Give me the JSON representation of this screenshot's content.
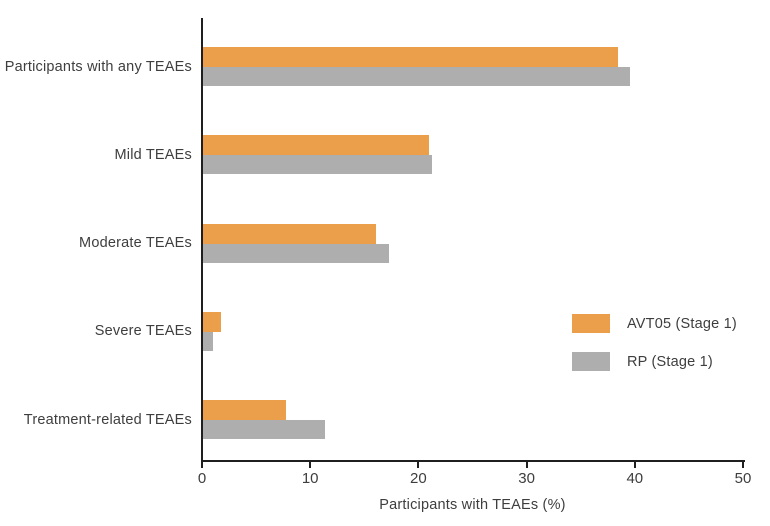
{
  "chart_data": {
    "type": "bar",
    "orientation": "horizontal",
    "title": "",
    "categories": [
      "Participants with any TEAEs",
      "Mild TEAEs",
      "Moderate TEAEs",
      "Severe TEAEs",
      "Treatment-related TEAEs"
    ],
    "series": [
      {
        "name": "AVT05 (Stage 1)",
        "color": "#EC9F4B",
        "values": [
          38.4,
          20.9,
          16.0,
          1.7,
          7.7
        ]
      },
      {
        "name": "RP (Stage 1)",
        "color": "#AEAEAE",
        "values": [
          39.5,
          21.2,
          17.2,
          0.9,
          11.3
        ]
      }
    ],
    "xlabel": "Participants with TEAEs (%)",
    "ylabel": "",
    "xlim": [
      0,
      50
    ],
    "xticks": [
      0,
      10,
      20,
      30,
      40,
      50
    ],
    "grid": false,
    "legend_position": "right-middle",
    "axis_color": "#1F1F1F",
    "text_color": "#3E3E3E",
    "background_color": "#FFFFFF"
  }
}
